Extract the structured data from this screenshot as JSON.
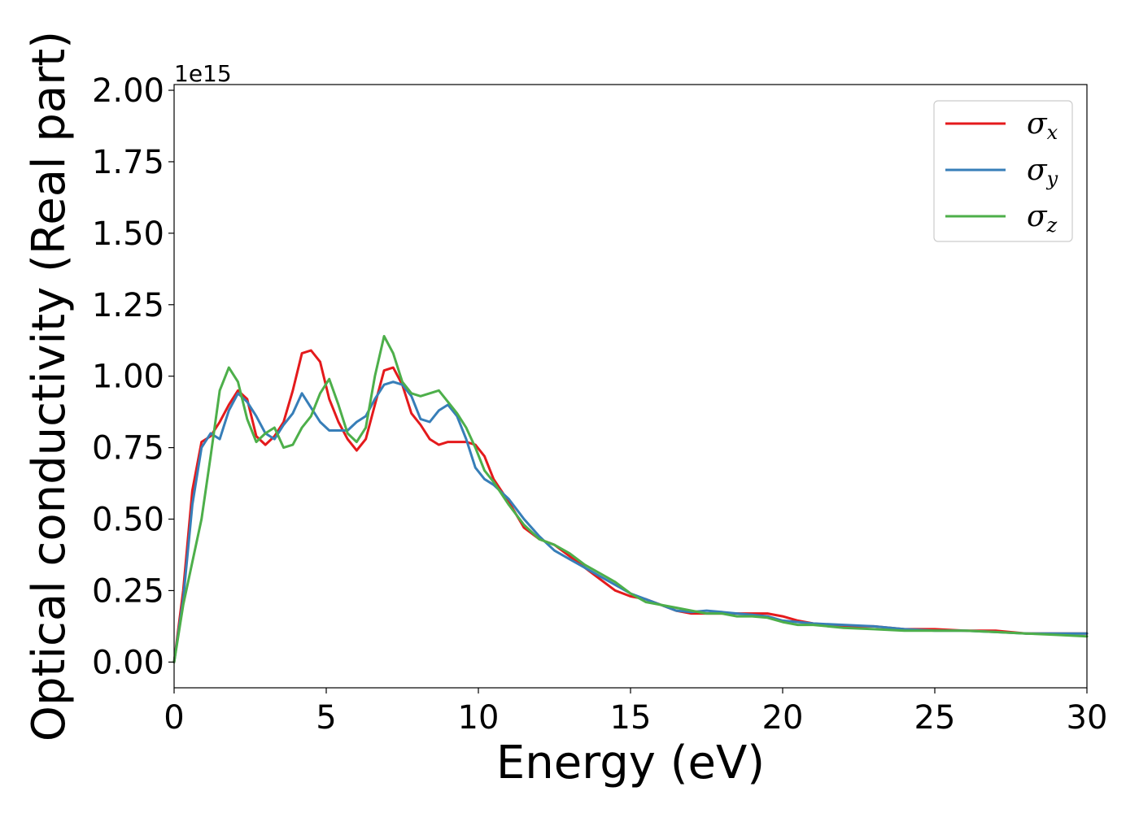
{
  "chart_data": {
    "type": "line",
    "title": "",
    "xlabel": "Energy (eV)",
    "ylabel": "Optical conductivity (Real part)",
    "y_offset_label": "1e15",
    "xlim": [
      0,
      30
    ],
    "ylim": [
      -0.09,
      2.02
    ],
    "xticks": [
      0,
      5,
      10,
      15,
      20,
      25,
      30
    ],
    "xtick_labels": [
      "0",
      "5",
      "10",
      "15",
      "20",
      "25",
      "30"
    ],
    "yticks": [
      0.0,
      0.25,
      0.5,
      0.75,
      1.0,
      1.25,
      1.5,
      1.75,
      2.0
    ],
    "ytick_labels": [
      "0.00",
      "0.25",
      "0.50",
      "0.75",
      "1.00",
      "1.25",
      "1.50",
      "1.75",
      "2.00"
    ],
    "grid": false,
    "legend_position": "top-right",
    "series": [
      {
        "name": "σx",
        "name_base": "σ",
        "name_sub": "x",
        "color": "#e41a1c",
        "x": [
          0,
          0.3,
          0.6,
          0.9,
          1.2,
          1.5,
          1.8,
          2.1,
          2.4,
          2.7,
          3.0,
          3.3,
          3.6,
          3.9,
          4.2,
          4.5,
          4.8,
          5.1,
          5.4,
          5.7,
          6.0,
          6.3,
          6.6,
          6.9,
          7.2,
          7.5,
          7.8,
          8.1,
          8.4,
          8.7,
          9.0,
          9.3,
          9.6,
          9.9,
          10.2,
          10.5,
          11.0,
          11.5,
          12.0,
          12.5,
          13.0,
          13.5,
          14.0,
          14.5,
          15.0,
          15.5,
          16.0,
          16.5,
          17.0,
          17.5,
          18.0,
          18.5,
          19.0,
          19.5,
          20.0,
          20.5,
          21.0,
          22.0,
          23.0,
          24.0,
          25.0,
          26.0,
          27.0,
          28.0,
          29.0,
          30.0
        ],
        "y": [
          0.0,
          0.25,
          0.6,
          0.77,
          0.79,
          0.84,
          0.9,
          0.95,
          0.92,
          0.79,
          0.76,
          0.79,
          0.84,
          0.95,
          1.08,
          1.09,
          1.05,
          0.92,
          0.84,
          0.78,
          0.74,
          0.78,
          0.9,
          1.02,
          1.03,
          0.97,
          0.87,
          0.83,
          0.78,
          0.76,
          0.77,
          0.77,
          0.77,
          0.76,
          0.72,
          0.64,
          0.56,
          0.47,
          0.43,
          0.41,
          0.37,
          0.33,
          0.29,
          0.25,
          0.23,
          0.22,
          0.2,
          0.18,
          0.17,
          0.17,
          0.17,
          0.17,
          0.17,
          0.17,
          0.16,
          0.145,
          0.135,
          0.125,
          0.125,
          0.115,
          0.115,
          0.11,
          0.11,
          0.1,
          0.1,
          0.1
        ]
      },
      {
        "name": "σy",
        "name_base": "σ",
        "name_sub": "y",
        "color": "#377eb8",
        "x": [
          0,
          0.3,
          0.6,
          0.9,
          1.2,
          1.5,
          1.8,
          2.1,
          2.4,
          2.7,
          3.0,
          3.3,
          3.6,
          3.9,
          4.2,
          4.5,
          4.8,
          5.1,
          5.4,
          5.7,
          6.0,
          6.3,
          6.6,
          6.9,
          7.2,
          7.5,
          7.8,
          8.1,
          8.4,
          8.7,
          9.0,
          9.3,
          9.6,
          9.9,
          10.2,
          10.5,
          11.0,
          11.5,
          12.0,
          12.5,
          13.0,
          13.5,
          14.0,
          14.5,
          15.0,
          15.5,
          16.0,
          16.5,
          17.0,
          17.5,
          18.0,
          18.5,
          19.0,
          19.5,
          20.0,
          20.5,
          21.0,
          22.0,
          23.0,
          24.0,
          25.0,
          26.0,
          27.0,
          28.0,
          29.0,
          30.0
        ],
        "y": [
          0.0,
          0.22,
          0.55,
          0.75,
          0.8,
          0.78,
          0.88,
          0.94,
          0.91,
          0.86,
          0.8,
          0.78,
          0.83,
          0.87,
          0.94,
          0.89,
          0.84,
          0.81,
          0.81,
          0.81,
          0.84,
          0.86,
          0.92,
          0.97,
          0.98,
          0.97,
          0.93,
          0.85,
          0.84,
          0.88,
          0.9,
          0.86,
          0.78,
          0.68,
          0.64,
          0.62,
          0.57,
          0.5,
          0.44,
          0.39,
          0.36,
          0.33,
          0.3,
          0.27,
          0.24,
          0.22,
          0.2,
          0.18,
          0.175,
          0.18,
          0.175,
          0.17,
          0.165,
          0.16,
          0.145,
          0.14,
          0.135,
          0.13,
          0.125,
          0.115,
          0.11,
          0.11,
          0.105,
          0.1,
          0.1,
          0.1
        ]
      },
      {
        "name": "σz",
        "name_base": "σ",
        "name_sub": "z",
        "color": "#4daf4a",
        "x": [
          0,
          0.3,
          0.6,
          0.9,
          1.2,
          1.5,
          1.8,
          2.1,
          2.4,
          2.7,
          3.0,
          3.3,
          3.6,
          3.9,
          4.2,
          4.5,
          4.8,
          5.1,
          5.4,
          5.7,
          6.0,
          6.3,
          6.6,
          6.9,
          7.2,
          7.5,
          7.8,
          8.1,
          8.4,
          8.7,
          9.0,
          9.3,
          9.6,
          9.9,
          10.2,
          10.5,
          11.0,
          11.5,
          12.0,
          12.5,
          13.0,
          13.5,
          14.0,
          14.5,
          15.0,
          15.5,
          16.0,
          16.5,
          17.0,
          17.5,
          18.0,
          18.5,
          19.0,
          19.5,
          20.0,
          20.5,
          21.0,
          22.0,
          23.0,
          24.0,
          25.0,
          26.0,
          27.0,
          28.0,
          29.0,
          30.0
        ],
        "y": [
          0.0,
          0.2,
          0.35,
          0.5,
          0.72,
          0.95,
          1.03,
          0.98,
          0.85,
          0.77,
          0.8,
          0.82,
          0.75,
          0.76,
          0.82,
          0.86,
          0.94,
          0.99,
          0.9,
          0.8,
          0.77,
          0.82,
          1.0,
          1.14,
          1.08,
          0.98,
          0.94,
          0.93,
          0.94,
          0.95,
          0.91,
          0.87,
          0.82,
          0.75,
          0.67,
          0.63,
          0.55,
          0.48,
          0.43,
          0.41,
          0.38,
          0.34,
          0.31,
          0.28,
          0.24,
          0.21,
          0.2,
          0.19,
          0.18,
          0.17,
          0.17,
          0.16,
          0.16,
          0.155,
          0.14,
          0.13,
          0.13,
          0.12,
          0.115,
          0.11,
          0.11,
          0.11,
          0.105,
          0.1,
          0.095,
          0.09
        ]
      }
    ]
  }
}
